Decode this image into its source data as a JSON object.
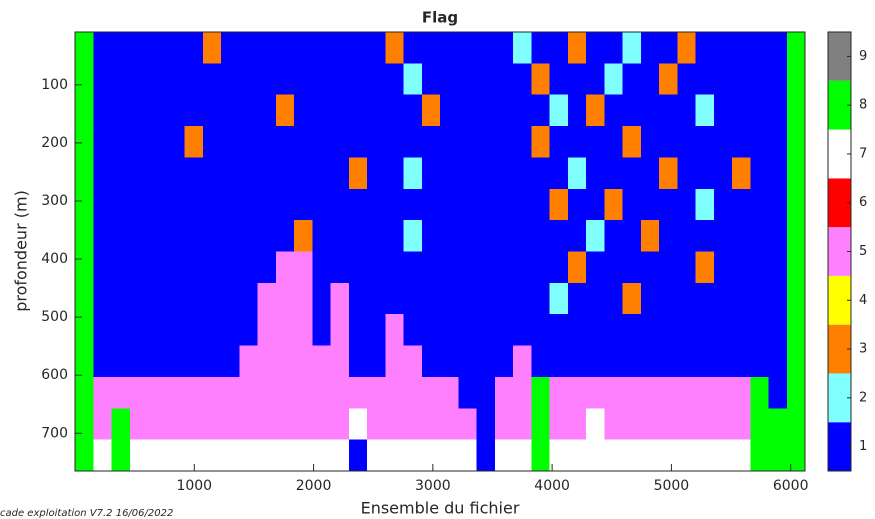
{
  "chart_data": {
    "type": "heatmap",
    "title": "Flag",
    "xlabel": "Ensemble du fichier",
    "ylabel": "profondeur (m)",
    "footer": "cade exploitation V7.2 16/06/2022",
    "xlim": [
      0,
      6120
    ],
    "ylim": [
      765,
      9
    ],
    "xticks": [
      1000,
      2000,
      3000,
      4000,
      5000,
      6000
    ],
    "yticks": [
      100,
      200,
      300,
      400,
      500,
      600,
      700
    ],
    "xbins": [
      0,
      153,
      306,
      459,
      612,
      765,
      918,
      1071,
      1224,
      1377,
      1530,
      1683,
      1836,
      1989,
      2142,
      2295,
      2448,
      2601,
      2754,
      2907,
      3060,
      3213,
      3366,
      3519,
      3672,
      3825,
      3978,
      4131,
      4284,
      4437,
      4590,
      4743,
      4896,
      5049,
      5202,
      5355,
      5508,
      5661,
      5814,
      5967,
      6120
    ],
    "ybins": [
      9,
      63,
      117,
      171,
      225,
      279,
      333,
      387,
      441,
      495,
      549,
      603,
      657,
      711,
      765
    ],
    "colors": [
      "#0000ff",
      "#80ffff",
      "#ff8000",
      "#ffff00",
      "#ff80ff",
      "#ff0000",
      "#ffffff",
      "#00ff00",
      "#808080"
    ],
    "clim": [
      0.5,
      9.5
    ],
    "cticks": [
      1,
      2,
      3,
      4,
      5,
      6,
      7,
      8,
      9
    ],
    "z": [
      [
        8,
        1,
        1,
        1,
        1,
        1,
        1,
        3,
        1,
        1,
        1,
        1,
        1,
        1,
        1,
        1,
        1,
        3,
        1,
        1,
        1,
        1,
        1,
        1,
        2,
        1,
        1,
        3,
        1,
        1,
        2,
        1,
        1,
        3,
        1,
        1,
        1,
        1,
        1,
        8
      ],
      [
        8,
        1,
        1,
        1,
        1,
        1,
        1,
        1,
        1,
        1,
        1,
        1,
        1,
        1,
        1,
        1,
        1,
        1,
        2,
        1,
        1,
        1,
        1,
        1,
        1,
        3,
        1,
        1,
        1,
        2,
        1,
        1,
        3,
        1,
        1,
        1,
        1,
        1,
        1,
        8
      ],
      [
        8,
        1,
        1,
        1,
        1,
        1,
        1,
        1,
        1,
        1,
        1,
        3,
        1,
        1,
        1,
        1,
        1,
        1,
        1,
        3,
        1,
        1,
        1,
        1,
        1,
        1,
        2,
        1,
        3,
        1,
        1,
        1,
        1,
        1,
        2,
        1,
        1,
        1,
        1,
        8
      ],
      [
        8,
        1,
        1,
        1,
        1,
        1,
        3,
        1,
        1,
        1,
        1,
        1,
        1,
        1,
        1,
        1,
        1,
        1,
        1,
        1,
        1,
        1,
        1,
        1,
        1,
        3,
        1,
        1,
        1,
        1,
        3,
        1,
        1,
        1,
        1,
        1,
        1,
        1,
        1,
        8
      ],
      [
        8,
        1,
        1,
        1,
        1,
        1,
        1,
        1,
        1,
        1,
        1,
        1,
        1,
        1,
        1,
        3,
        1,
        1,
        2,
        1,
        1,
        1,
        1,
        1,
        1,
        1,
        1,
        2,
        1,
        1,
        1,
        1,
        3,
        1,
        1,
        1,
        3,
        1,
        1,
        8
      ],
      [
        8,
        1,
        1,
        1,
        1,
        1,
        1,
        1,
        1,
        1,
        1,
        1,
        1,
        1,
        1,
        1,
        1,
        1,
        1,
        1,
        1,
        1,
        1,
        1,
        1,
        1,
        3,
        1,
        1,
        3,
        1,
        1,
        1,
        1,
        2,
        1,
        1,
        1,
        1,
        8
      ],
      [
        8,
        1,
        1,
        1,
        1,
        1,
        1,
        1,
        1,
        1,
        1,
        1,
        3,
        1,
        1,
        1,
        1,
        1,
        2,
        1,
        1,
        1,
        1,
        1,
        1,
        1,
        1,
        1,
        2,
        1,
        1,
        3,
        1,
        1,
        1,
        1,
        1,
        1,
        1,
        8
      ],
      [
        8,
        1,
        1,
        1,
        1,
        1,
        1,
        1,
        1,
        1,
        1,
        5,
        5,
        1,
        1,
        1,
        1,
        1,
        1,
        1,
        1,
        1,
        1,
        1,
        1,
        1,
        1,
        3,
        1,
        1,
        1,
        1,
        1,
        1,
        3,
        1,
        1,
        1,
        1,
        8
      ],
      [
        8,
        1,
        1,
        1,
        1,
        1,
        1,
        1,
        1,
        1,
        5,
        5,
        5,
        1,
        5,
        1,
        1,
        1,
        1,
        1,
        1,
        1,
        1,
        1,
        1,
        1,
        2,
        1,
        1,
        1,
        3,
        1,
        1,
        1,
        1,
        1,
        1,
        1,
        1,
        8
      ],
      [
        8,
        1,
        1,
        1,
        1,
        1,
        1,
        1,
        1,
        1,
        5,
        5,
        5,
        1,
        5,
        1,
        1,
        5,
        1,
        1,
        1,
        1,
        1,
        1,
        1,
        1,
        1,
        1,
        1,
        1,
        1,
        1,
        1,
        1,
        1,
        1,
        1,
        1,
        1,
        8
      ],
      [
        8,
        1,
        1,
        1,
        1,
        1,
        1,
        1,
        1,
        5,
        5,
        5,
        5,
        5,
        5,
        1,
        1,
        5,
        5,
        1,
        1,
        1,
        1,
        1,
        5,
        1,
        1,
        1,
        1,
        1,
        1,
        1,
        1,
        1,
        1,
        1,
        1,
        1,
        1,
        8
      ],
      [
        8,
        5,
        5,
        5,
        5,
        5,
        5,
        5,
        5,
        5,
        5,
        5,
        5,
        5,
        5,
        5,
        5,
        5,
        5,
        5,
        5,
        1,
        1,
        5,
        5,
        8,
        5,
        5,
        5,
        5,
        5,
        5,
        5,
        5,
        5,
        5,
        5,
        8,
        1,
        8
      ],
      [
        8,
        5,
        8,
        5,
        5,
        5,
        5,
        5,
        5,
        5,
        5,
        5,
        5,
        5,
        5,
        7,
        5,
        5,
        5,
        5,
        5,
        5,
        1,
        5,
        5,
        8,
        5,
        5,
        7,
        5,
        5,
        5,
        5,
        5,
        5,
        5,
        5,
        8,
        8,
        8
      ],
      [
        8,
        7,
        8,
        7,
        7,
        7,
        7,
        7,
        7,
        7,
        7,
        7,
        7,
        7,
        7,
        1,
        7,
        7,
        7,
        7,
        7,
        7,
        1,
        7,
        7,
        8,
        7,
        7,
        7,
        7,
        7,
        7,
        7,
        7,
        7,
        7,
        7,
        8,
        8,
        8
      ]
    ]
  }
}
